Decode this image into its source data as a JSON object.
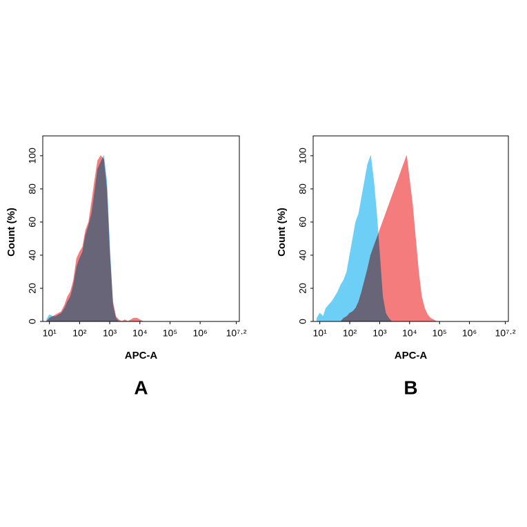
{
  "chart_data": [
    {
      "type": "area",
      "panel_label": "A",
      "xlabel": "APC-A",
      "ylabel": "Count  (%)",
      "log_x": true,
      "x": [
        8,
        10,
        13,
        16,
        20,
        25,
        32,
        40,
        50,
        63,
        80,
        100,
        126,
        158,
        200,
        251,
        316,
        398,
        501,
        631,
        794,
        1000,
        1259,
        1585,
        1995,
        2512,
        3162,
        3981,
        5012,
        6310,
        7943,
        10000,
        12589,
        15849,
        19953,
        25119,
        31623,
        39811,
        50119,
        63096,
        79433,
        100000
      ],
      "series": [
        {
          "color": "#f47c7c",
          "values": [
            0,
            2,
            3,
            4,
            5,
            6,
            10,
            15,
            18,
            25,
            38,
            42,
            45,
            55,
            60,
            72,
            85,
            97,
            100,
            98,
            80,
            40,
            12,
            3,
            1,
            0,
            1,
            0,
            1,
            2,
            2,
            1,
            0,
            0,
            0,
            0,
            0,
            0,
            0,
            0,
            0,
            0
          ]
        },
        {
          "color": "#6ecff6",
          "values": [
            1,
            4,
            3,
            3,
            4,
            5,
            8,
            12,
            15,
            22,
            33,
            38,
            42,
            52,
            58,
            65,
            78,
            92,
            96,
            100,
            85,
            45,
            10,
            2,
            0,
            0,
            0,
            0,
            0,
            0,
            0,
            0,
            0,
            0,
            0,
            0,
            0,
            0,
            0,
            0,
            0,
            0
          ]
        }
      ],
      "xlim": [
        6,
        20000000
      ],
      "xticks": [
        {
          "value": 10,
          "label": "10¹"
        },
        {
          "value": 100,
          "label": "10²"
        },
        {
          "value": 1000,
          "label": "10³"
        },
        {
          "value": 10000,
          "label": "10⁴"
        },
        {
          "value": 100000,
          "label": "10⁵"
        },
        {
          "value": 1000000,
          "label": "10⁶"
        },
        {
          "value": 15848932,
          "label": "10⁷·²"
        }
      ],
      "ylim": [
        0,
        112
      ],
      "yticks": [
        0,
        20,
        40,
        60,
        80,
        100
      ]
    },
    {
      "type": "area",
      "panel_label": "B",
      "xlabel": "APC-A",
      "ylabel": "Count  (%)",
      "log_x": true,
      "x": [
        8,
        10,
        13,
        16,
        20,
        25,
        32,
        40,
        50,
        63,
        80,
        100,
        126,
        158,
        200,
        251,
        316,
        398,
        501,
        631,
        794,
        1000,
        1259,
        1585,
        1995,
        2512,
        3162,
        3981,
        5012,
        6310,
        7943,
        10000,
        12589,
        15849,
        19953,
        25119,
        31623,
        39811,
        50119,
        63096,
        79433,
        100000
      ],
      "series": [
        {
          "color": "#f47c7c",
          "values": [
            0,
            0,
            0,
            0,
            0,
            0,
            0,
            0,
            0,
            2,
            3,
            5,
            6,
            8,
            12,
            18,
            25,
            32,
            40,
            45,
            50,
            55,
            60,
            65,
            70,
            75,
            80,
            85,
            90,
            95,
            100,
            85,
            70,
            50,
            30,
            15,
            8,
            4,
            2,
            1,
            0,
            0
          ]
        },
        {
          "color": "#6ecff6",
          "values": [
            2,
            5,
            3,
            8,
            10,
            12,
            15,
            18,
            22,
            25,
            30,
            40,
            50,
            60,
            65,
            75,
            85,
            95,
            100,
            85,
            65,
            40,
            15,
            5,
            2,
            0,
            0,
            0,
            0,
            0,
            0,
            0,
            0,
            0,
            0,
            0,
            0,
            0,
            0,
            0,
            0,
            0
          ]
        }
      ],
      "xlim": [
        6,
        20000000
      ],
      "xticks": [
        {
          "value": 10,
          "label": "10¹"
        },
        {
          "value": 100,
          "label": "10²"
        },
        {
          "value": 1000,
          "label": "10³"
        },
        {
          "value": 10000,
          "label": "10⁴"
        },
        {
          "value": 100000,
          "label": "10⁵"
        },
        {
          "value": 1000000,
          "label": "10⁶"
        },
        {
          "value": 15848932,
          "label": "10⁷·²"
        }
      ],
      "ylim": [
        0,
        112
      ],
      "yticks": [
        0,
        20,
        40,
        60,
        80,
        100
      ]
    }
  ]
}
